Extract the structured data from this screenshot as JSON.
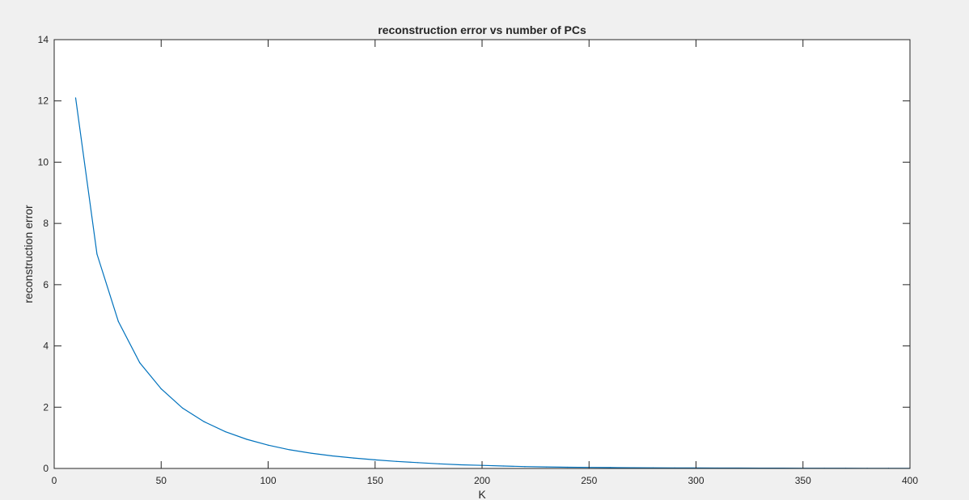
{
  "colors": {
    "figure_background": "#f0f0f0",
    "axes_background": "#ffffff",
    "axes_color": "#262626",
    "series_color": "#0072bd"
  },
  "chart_data": {
    "type": "line",
    "title": "reconstruction error vs number of PCs",
    "xlabel": "K",
    "ylabel": "reconstruction error",
    "xlim": [
      0,
      400
    ],
    "ylim": [
      0,
      14
    ],
    "xticks": [
      0,
      50,
      100,
      150,
      200,
      250,
      300,
      350,
      400
    ],
    "yticks": [
      0,
      2,
      4,
      6,
      8,
      10,
      12,
      14
    ],
    "grid": false,
    "legend": "none",
    "series": [
      {
        "x": [
          10,
          20,
          30,
          40,
          50,
          60,
          70,
          80,
          90,
          100,
          110,
          120,
          130,
          140,
          150,
          160,
          170,
          180,
          190,
          200,
          210,
          220,
          230,
          240,
          250,
          260,
          270,
          280,
          290,
          300,
          310,
          320,
          330,
          340,
          350,
          360,
          370,
          380,
          390,
          400
        ],
        "y": [
          12.1,
          7.0,
          4.8,
          3.45,
          2.6,
          1.97,
          1.53,
          1.2,
          0.95,
          0.76,
          0.61,
          0.5,
          0.41,
          0.34,
          0.28,
          0.23,
          0.19,
          0.15,
          0.12,
          0.1,
          0.08,
          0.06,
          0.05,
          0.04,
          0.035,
          0.03,
          0.025,
          0.02,
          0.018,
          0.016,
          0.014,
          0.012,
          0.011,
          0.01,
          0.009,
          0.008,
          0.007,
          0.006,
          0.006,
          0.005
        ]
      }
    ]
  }
}
